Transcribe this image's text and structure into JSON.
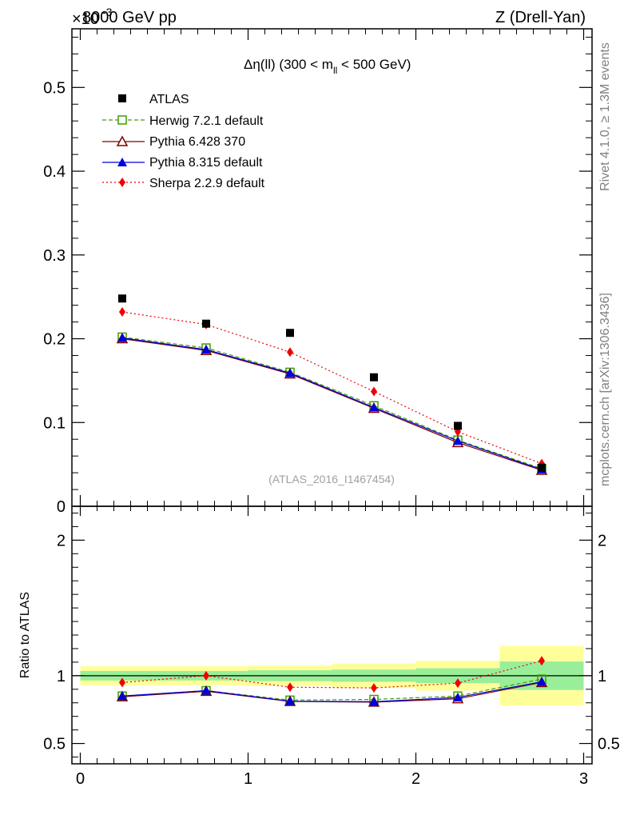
{
  "header": {
    "left": "8000 GeV pp",
    "right": "Z (Drell-Yan)",
    "scale": "×10",
    "scale_exp": "-3"
  },
  "side": {
    "rivet": "Rivet 4.1.0, ≥ 1.3M events",
    "mcplots": "mcplots.cern.ch [arXiv:1306.3436]"
  },
  "chart_data": {
    "type": "line",
    "title": "Δη(ll) (300 < m_ll < 500 GeV)",
    "title_parts": {
      "main": "Δη(ll) (300 < m",
      "sub": "ll",
      "tail": " < 500 GeV)"
    },
    "watermark": "(ATLAS_2016_I1467454)",
    "xlabel": "",
    "ylabel": "",
    "ratio_ylabel": "Ratio to ATLAS",
    "xlim": [
      -0.05,
      3.05
    ],
    "ylim": [
      0,
      0.57
    ],
    "ratio_ylim": [
      0.35,
      2.25
    ],
    "xticks": [
      0,
      1,
      2,
      3
    ],
    "yticks": [
      0.1,
      0.2,
      0.3,
      0.4,
      0.5
    ],
    "ytick_labels": [
      "0.1",
      "0.2",
      "0.3",
      "0.4",
      "0.5"
    ],
    "y_zero_label": "0",
    "ratio_yticks": [
      0.5,
      1,
      2
    ],
    "ratio_ytick_labels": [
      "0.5",
      "1",
      "2"
    ],
    "bin_edges": [
      0,
      0.5,
      1.0,
      1.5,
      2.0,
      2.5,
      3.0
    ],
    "x": [
      0.25,
      0.75,
      1.25,
      1.75,
      2.25,
      2.75
    ],
    "data": {
      "name": "ATLAS",
      "color": "#000000",
      "values": [
        0.248,
        0.218,
        0.207,
        0.154,
        0.096,
        0.046
      ]
    },
    "series": [
      {
        "name": "Herwig 7.2.1 default",
        "color": "#3f9f00",
        "dash": "5,3",
        "marker": "open-square",
        "values": [
          0.202,
          0.189,
          0.16,
          0.12,
          0.079,
          0.045
        ],
        "ratio": [
          0.85,
          0.89,
          0.82,
          0.825,
          0.85,
          0.975
        ]
      },
      {
        "name": "Pythia 6.428 370",
        "color": "#800000",
        "dash": "",
        "marker": "open-triangle",
        "values": [
          0.2,
          0.186,
          0.158,
          0.117,
          0.076,
          0.043
        ],
        "ratio": [
          0.845,
          0.885,
          0.81,
          0.805,
          0.83,
          0.95
        ]
      },
      {
        "name": "Pythia 8.315 default",
        "color": "#0000dd",
        "dash": "",
        "marker": "filled-triangle",
        "values": [
          0.201,
          0.187,
          0.159,
          0.118,
          0.078,
          0.044
        ],
        "ratio": [
          0.85,
          0.89,
          0.812,
          0.808,
          0.84,
          0.955
        ]
      },
      {
        "name": "Sherpa 2.2.9 default",
        "color": "#ee0000",
        "dash": "2,3",
        "marker": "diamond",
        "values": [
          0.232,
          0.217,
          0.184,
          0.137,
          0.089,
          0.051
        ],
        "ratio": [
          0.95,
          1.0,
          0.915,
          0.91,
          0.945,
          1.11
        ]
      }
    ],
    "bands": {
      "green_rel": [
        0.035,
        0.035,
        0.04,
        0.045,
        0.055,
        0.105
      ],
      "yellow_rel": [
        0.07,
        0.07,
        0.075,
        0.09,
        0.11,
        0.22
      ]
    }
  }
}
